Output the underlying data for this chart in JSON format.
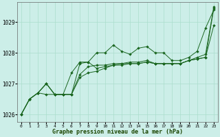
{
  "background_color": "#cceee8",
  "grid_color": "#aaddcc",
  "line_color": "#1a6620",
  "title": "Graphe pression niveau de la mer (hPa)",
  "hours": [
    0,
    1,
    2,
    3,
    4,
    5,
    6,
    7,
    8,
    9,
    10,
    11,
    12,
    13,
    14,
    15,
    16,
    17,
    18,
    19,
    20,
    21,
    22,
    23
  ],
  "ylim": [
    1025.75,
    1029.65
  ],
  "yticks": [
    1026,
    1027,
    1028,
    1029
  ],
  "series": [
    [
      1026.0,
      1026.5,
      1026.7,
      1027.0,
      1026.65,
      1026.65,
      1026.65,
      1027.2,
      1027.35,
      1027.4,
      1027.5,
      1027.6,
      1027.6,
      1027.65,
      1027.65,
      1027.7,
      1027.65,
      1027.65,
      1027.65,
      1027.65,
      1027.75,
      1027.85,
      1027.95,
      1029.5
    ],
    [
      1026.0,
      1026.5,
      1026.7,
      1026.65,
      1026.65,
      1026.65,
      1026.65,
      1027.65,
      1027.7,
      1028.0,
      1028.0,
      1028.25,
      1028.05,
      1027.95,
      1028.15,
      1028.2,
      1028.0,
      1028.0,
      1027.75,
      1027.75,
      1027.85,
      1028.05,
      1028.8,
      1029.4
    ],
    [
      1026.0,
      1026.5,
      1026.7,
      1027.0,
      1026.65,
      1026.65,
      1027.35,
      1027.7,
      1027.7,
      1027.5,
      1027.55,
      1027.6,
      1027.65,
      1027.65,
      1027.65,
      1027.7,
      1027.65,
      1027.65,
      1027.65,
      1027.65,
      1027.75,
      1027.8,
      1027.85,
      1029.45
    ],
    [
      1026.0,
      1026.5,
      1026.7,
      1027.0,
      1026.65,
      1026.65,
      1026.65,
      1027.3,
      1027.55,
      1027.6,
      1027.6,
      1027.65,
      1027.65,
      1027.7,
      1027.7,
      1027.75,
      1027.65,
      1027.65,
      1027.65,
      1027.65,
      1027.75,
      1027.8,
      1027.85,
      1028.9
    ]
  ]
}
